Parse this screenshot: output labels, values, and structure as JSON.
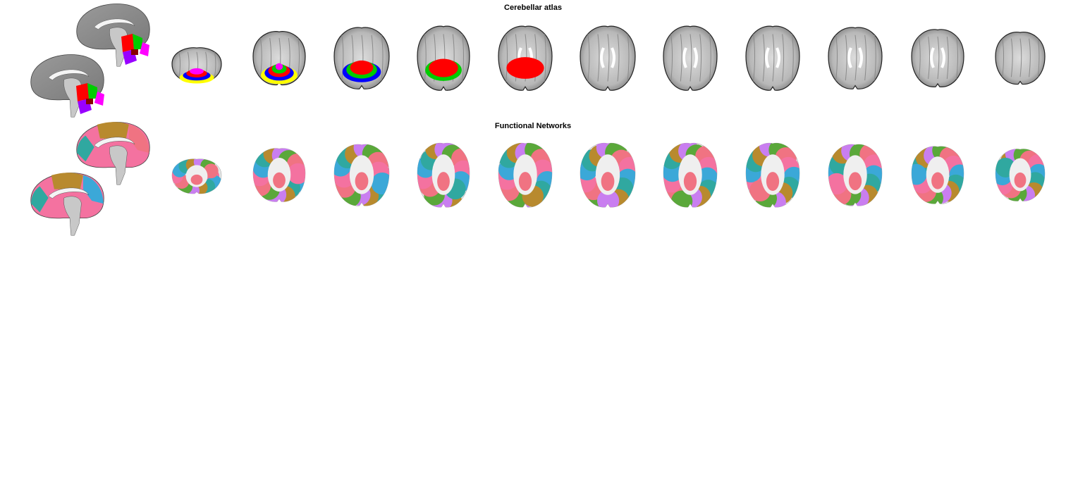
{
  "figure": {
    "panels": [
      {
        "id": "cerebellar",
        "title": "Cerebellar atlas",
        "palette": {
          "red": "#ff0000",
          "green": "#00cc00",
          "blue": "#0000ff",
          "yellow": "#ffff00",
          "magenta": "#ff00ff",
          "purple": "#9900ff",
          "dark": "#880000"
        },
        "slices": [
          {
            "overlay": [
              [
                "yellow",
                "blue",
                "red",
                "magenta"
              ]
            ]
          },
          {
            "overlay": [
              [
                "yellow",
                "blue",
                "red",
                "green",
                "magenta"
              ]
            ]
          },
          {
            "overlay": [
              [
                "blue",
                "green",
                "red"
              ]
            ]
          },
          {
            "overlay": [
              [
                "green",
                "red"
              ]
            ]
          },
          {
            "overlay": [
              [
                "red"
              ]
            ]
          },
          {
            "overlay": []
          },
          {
            "overlay": []
          },
          {
            "overlay": []
          },
          {
            "overlay": []
          },
          {
            "overlay": []
          },
          {
            "overlay": []
          }
        ]
      },
      {
        "id": "networks",
        "title": "Functional Networks",
        "palette": {
          "pink": "#f472a0",
          "salmon": "#f07382",
          "cyan": "#3ba8d8",
          "teal": "#30a8a0",
          "olive": "#b88a2e",
          "lavender": "#c97ef0",
          "green": "#5aa83a"
        }
      }
    ]
  }
}
